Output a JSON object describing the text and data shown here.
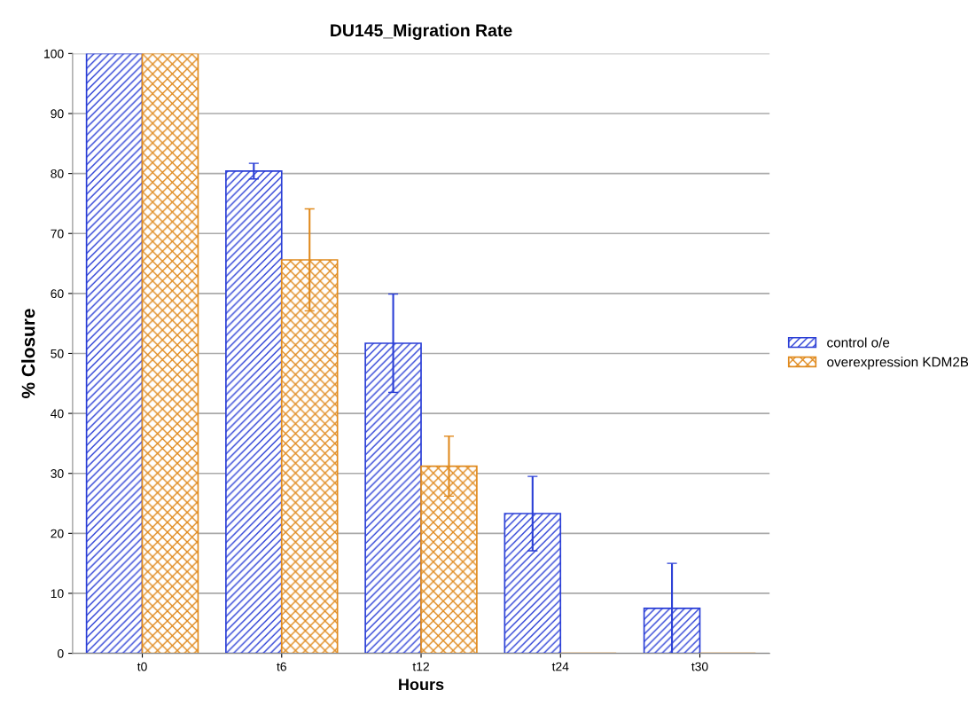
{
  "chart_data": {
    "type": "bar",
    "title": "DU145_Migration Rate",
    "xlabel": "Hours",
    "ylabel": "% Closure",
    "categories": [
      "t0",
      "t6",
      "t12",
      "t24",
      "t30"
    ],
    "series": [
      {
        "name": "control o/e",
        "color": "#2b3fd6",
        "values": [
          100,
          80.4,
          51.7,
          23.3,
          7.5
        ],
        "errors": [
          null,
          1.3,
          8.2,
          6.2,
          7.5
        ]
      },
      {
        "name": "overexpression KDM2B",
        "color": "#e08a1e",
        "values": [
          100,
          65.6,
          31.2,
          0,
          0
        ],
        "errors": [
          null,
          8.5,
          5,
          null,
          null
        ]
      }
    ],
    "ylim": [
      0,
      100
    ],
    "yticks": [
      0,
      10,
      20,
      30,
      40,
      50,
      60,
      70,
      80,
      90,
      100
    ],
    "grid": "y",
    "legend": "right"
  }
}
